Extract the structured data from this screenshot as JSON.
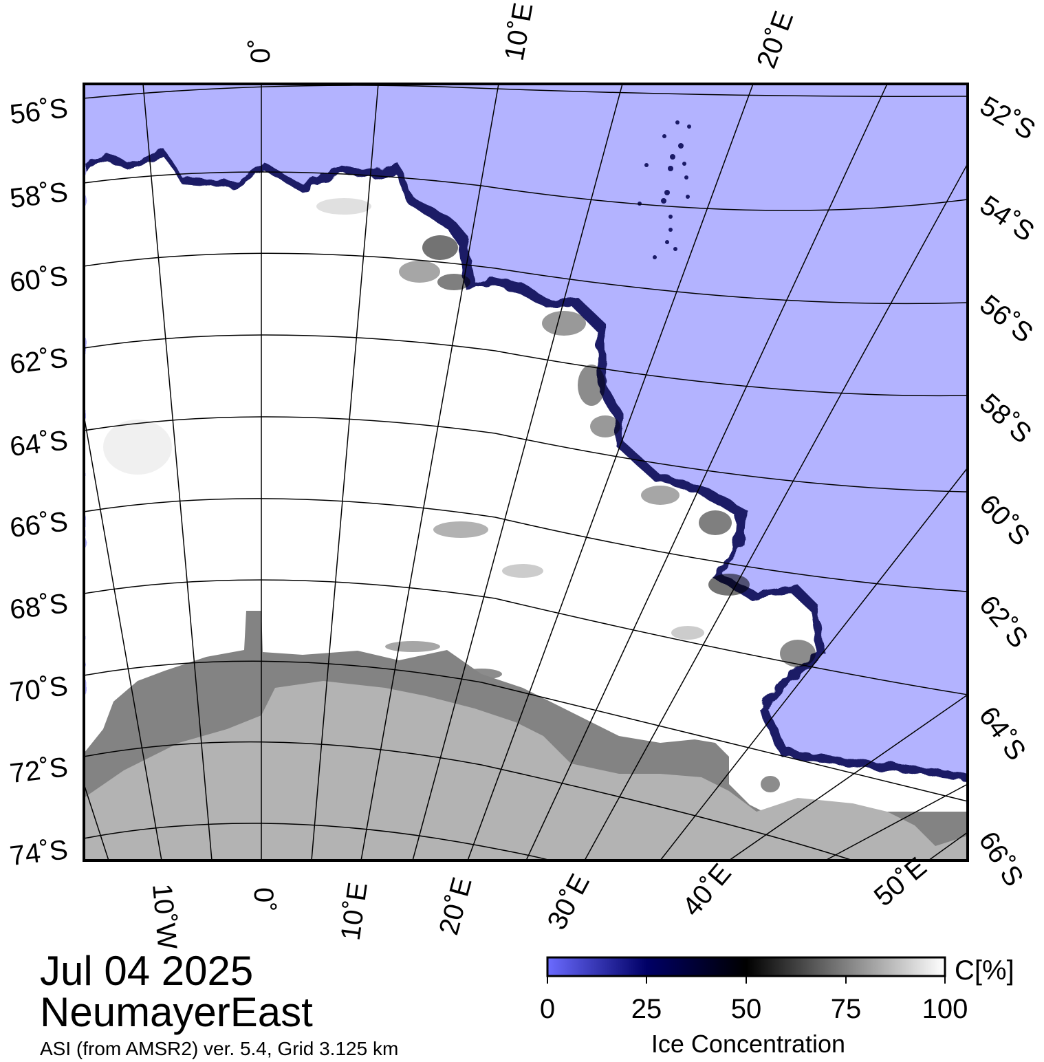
{
  "date": "Jul 04 2025",
  "region": "NeumayerEast",
  "source": "ASI (from AMSR2) ver. 5.4,  Grid 3.125 km",
  "colors": {
    "open_water": "#b3b3ff",
    "land": "#b3b3b3",
    "ice_shelf": "#838383",
    "ice_full": "#ffffff",
    "frame": "#000000"
  },
  "map": {
    "top_lon_labels": [
      "0˚",
      "10˚E",
      "20˚E"
    ],
    "bottom_lon_labels": [
      "10˚W",
      "0˚",
      "10˚E",
      "20˚E",
      "30˚E",
      "40˚E",
      "50˚E"
    ],
    "left_lat_labels": [
      "56˚S",
      "58˚S",
      "60˚S",
      "62˚S",
      "64˚S",
      "66˚S",
      "68˚S",
      "70˚S",
      "72˚S",
      "74˚S"
    ],
    "right_lat_labels": [
      "52˚S",
      "54˚S",
      "56˚S",
      "58˚S",
      "60˚S",
      "62˚S",
      "64˚S",
      "66˚S"
    ]
  },
  "colorbar": {
    "title": "Ice Concentration",
    "unit": "C[%]",
    "ticks": [
      "0",
      "25",
      "50",
      "75",
      "100"
    ],
    "stops": [
      {
        "value": 0,
        "color": "#6b6bff"
      },
      {
        "value": 25,
        "color": "#000066"
      },
      {
        "value": 50,
        "color": "#000000"
      },
      {
        "value": 100,
        "color": "#ffffff"
      }
    ]
  }
}
